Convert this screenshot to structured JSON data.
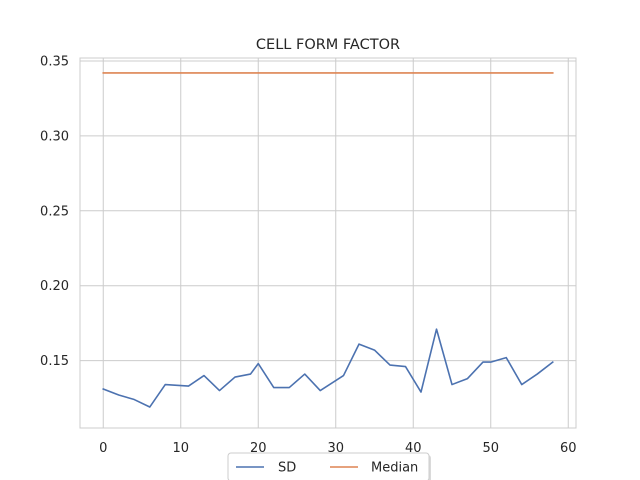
{
  "chart_data": {
    "type": "line",
    "title": "CELL FORM FACTOR",
    "xlabel": "",
    "ylabel": "",
    "xlim": [
      -3,
      61
    ],
    "ylim": [
      0.105,
      0.352
    ],
    "xticks": [
      0,
      10,
      20,
      30,
      40,
      50,
      60
    ],
    "yticks": [
      0.15,
      0.2,
      0.25,
      0.3,
      0.35
    ],
    "ytick_labels": [
      "0.15",
      "0.20",
      "0.25",
      "0.30",
      "0.35"
    ],
    "grid": true,
    "legend_position": "bottom-center",
    "series": [
      {
        "name": "SD",
        "color": "#4c72b0",
        "x": [
          0,
          2,
          4,
          6,
          8,
          11,
          13,
          15,
          17,
          19,
          20,
          22,
          24,
          26,
          28,
          31,
          33,
          35,
          37,
          39,
          41,
          43,
          45,
          47,
          49,
          50,
          52,
          54,
          56,
          58
        ],
        "y": [
          0.131,
          0.127,
          0.124,
          0.119,
          0.134,
          0.133,
          0.14,
          0.13,
          0.139,
          0.141,
          0.148,
          0.132,
          0.132,
          0.141,
          0.13,
          0.14,
          0.161,
          0.157,
          0.147,
          0.146,
          0.129,
          0.171,
          0.134,
          0.138,
          0.149,
          0.149,
          0.152,
          0.134,
          0.141,
          0.149
        ]
      },
      {
        "name": "Median",
        "color": "#dd8452",
        "x": [
          0,
          58
        ],
        "y": [
          0.342,
          0.342
        ]
      }
    ]
  }
}
